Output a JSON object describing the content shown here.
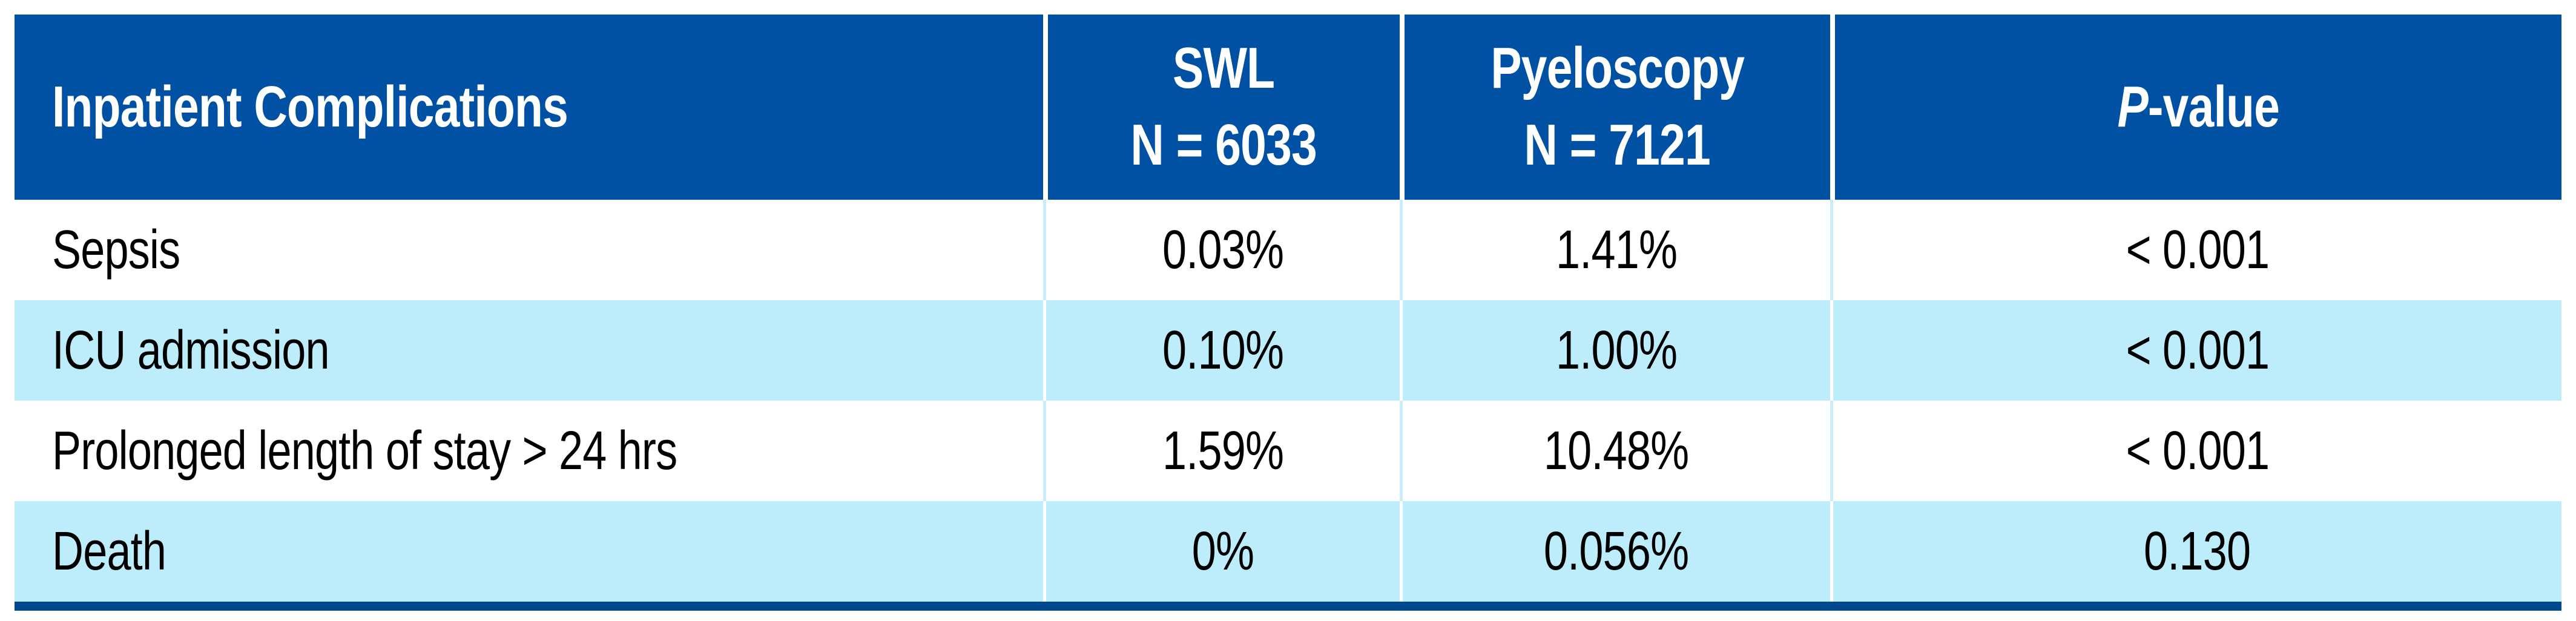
{
  "colors": {
    "header_bg": "#0051A3",
    "header_text": "#FFFFFF",
    "row_bg": "#FFFFFF",
    "row_alt_bg": "#BDECFA",
    "divider_on_white": "#C9EEFA",
    "divider_on_blue": "#FFFFFF",
    "bottom_rule": "#00498F",
    "body_text": "#000000"
  },
  "table": {
    "header": {
      "col1": "Inpatient Complications",
      "col2_line1": "SWL",
      "col2_line2": "N = 6033",
      "col3_line1": "Pyeloscopy",
      "col3_line2": "N = 7121",
      "col4_italic": "P",
      "col4_rest": "-value"
    },
    "rows": [
      {
        "complication": "Sepsis",
        "swl": "0.03%",
        "pyeloscopy": "1.41%",
        "p_value": "< 0.001"
      },
      {
        "complication": "ICU admission",
        "swl": "0.10%",
        "pyeloscopy": "1.00%",
        "p_value": "< 0.001"
      },
      {
        "complication": "Prolonged length of stay > 24 hrs",
        "swl": "1.59%",
        "pyeloscopy": "10.48%",
        "p_value": "< 0.001"
      },
      {
        "complication": "Death",
        "swl": "0%",
        "pyeloscopy": "0.056%",
        "p_value": "0.130"
      }
    ]
  }
}
